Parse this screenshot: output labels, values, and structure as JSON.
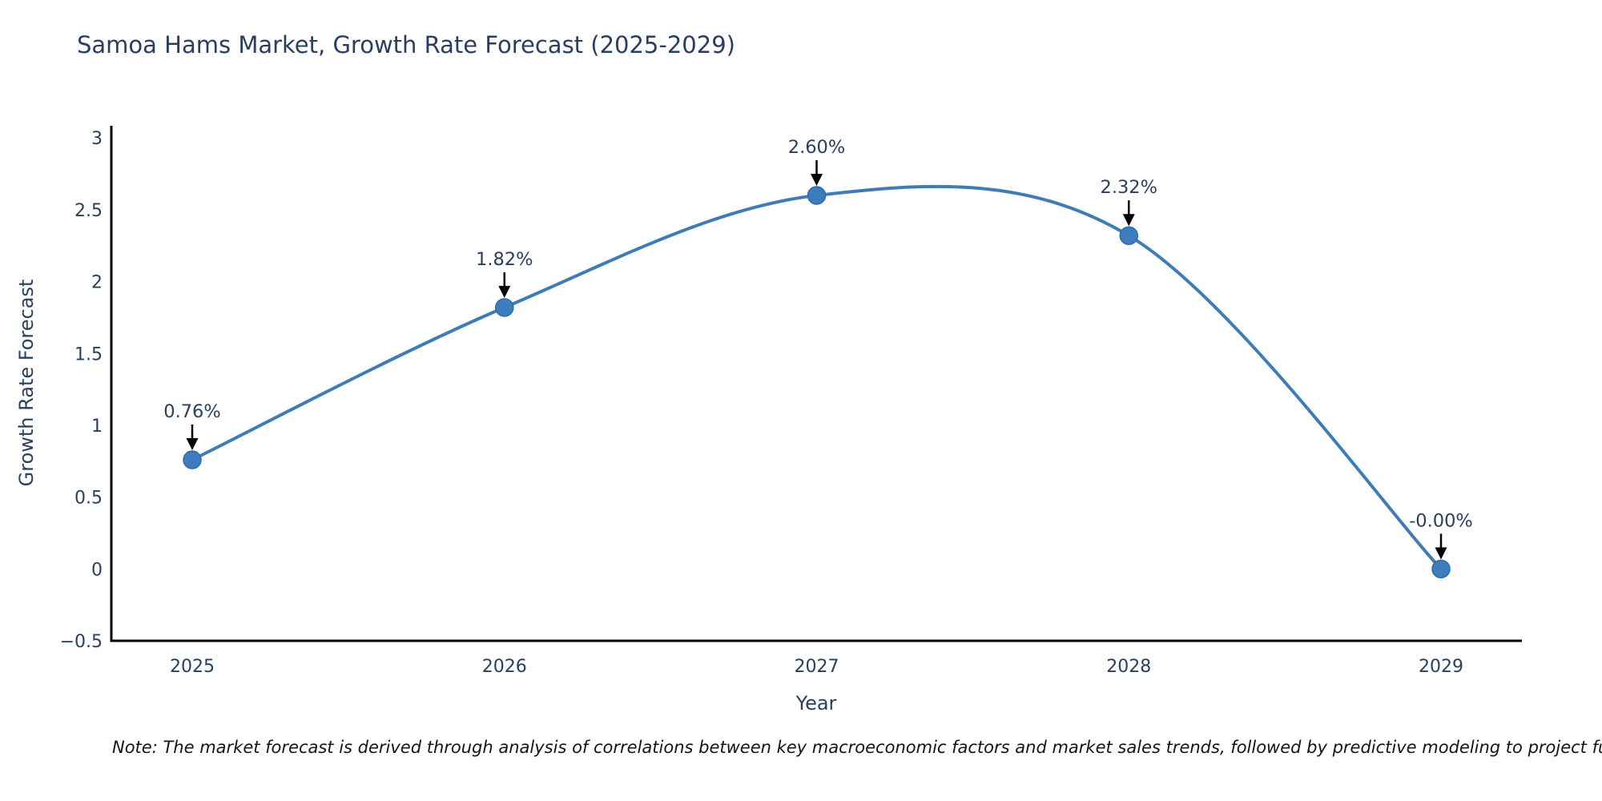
{
  "chart_data": {
    "type": "line",
    "title": "Samoa Hams Market, Growth Rate Forecast (2025-2029)",
    "xlabel": "Year",
    "ylabel": "Growth Rate Forecast",
    "x": [
      2025,
      2026,
      2027,
      2028,
      2029
    ],
    "xtick_labels": [
      "2025",
      "2026",
      "2027",
      "2028",
      "2029"
    ],
    "series": [
      {
        "name": "Growth Rate Forecast",
        "values": [
          0.76,
          1.82,
          2.6,
          2.32,
          -0.0
        ]
      }
    ],
    "point_labels": [
      "0.76%",
      "1.82%",
      "2.60%",
      "2.32%",
      "-0.00%"
    ],
    "ylim": [
      -0.5,
      3.085
    ],
    "yticks": [
      -0.5,
      0,
      0.5,
      1,
      1.5,
      2,
      2.5,
      3
    ],
    "ytick_labels": [
      "−0.5",
      "0",
      "0.5",
      "1",
      "1.5",
      "2",
      "2.5",
      "3"
    ],
    "line_shape": "spline",
    "grid": false,
    "legend_position": "none",
    "colors": {
      "line": "#3f7cb5",
      "marker_fill": "#3d7dbd",
      "marker_edge": "#2f6ba6",
      "axis_line": "#000000",
      "tick_text": "#2a3f5f",
      "title_text": "#2a3f5f",
      "annotation_text": "#2a3f5f",
      "annotation_arrow": "#000000",
      "background": "#ffffff"
    }
  },
  "note": {
    "text": "Note: The market forecast is derived through analysis of correlations between key macroeconomic factors and market sales trends, followed by predictive modeling to project future sales."
  }
}
